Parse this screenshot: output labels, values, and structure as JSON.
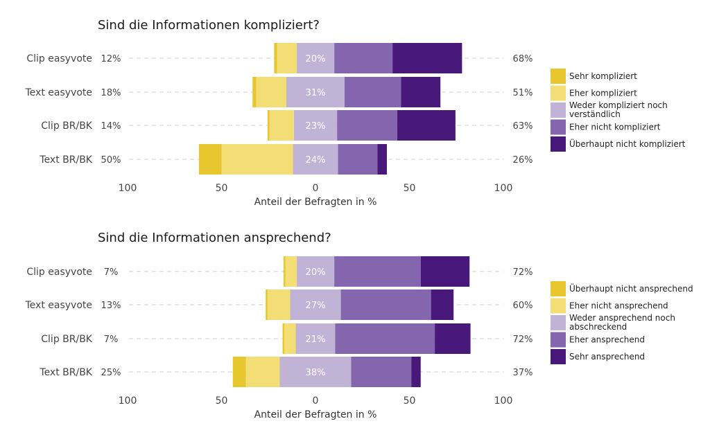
{
  "chart_data": [
    {
      "type": "bar",
      "orientation": "horizontal",
      "stacking": "diverging",
      "title": "Sind die Informationen kompliziert?",
      "xlabel": "Anteil der Befragten in %",
      "x_ticks": [
        "100",
        "50",
        "0",
        "50",
        "100"
      ],
      "xlim": [
        -100,
        100
      ],
      "categories": [
        "Clip easyvote",
        "Text easyvote",
        "Clip BR/BK",
        "Text BR/BK"
      ],
      "left_totals": [
        "12%",
        "18%",
        "14%",
        "50%"
      ],
      "right_totals": [
        "68%",
        "51%",
        "63%",
        "26%"
      ],
      "neutral_labels": [
        "20%",
        "31%",
        "23%",
        "24%"
      ],
      "legend_position": "right",
      "series": [
        {
          "name": "Sehr kompliziert",
          "color": "#E8C72E",
          "values": [
            1.5,
            2,
            1,
            12
          ]
        },
        {
          "name": "Eher kompliziert",
          "color": "#F3DE76",
          "values": [
            10.5,
            16,
            13,
            38
          ]
        },
        {
          "name": "Weder kompliziert noch verständlich",
          "color": "#C0B3D6",
          "values": [
            20,
            31,
            23,
            24
          ]
        },
        {
          "name": "Eher nicht kompliziert",
          "color": "#8366AD",
          "values": [
            31,
            30,
            32,
            21
          ]
        },
        {
          "name": "Überhaupt nicht kompliziert",
          "color": "#48197A",
          "values": [
            37,
            21,
            31,
            5
          ]
        }
      ]
    },
    {
      "type": "bar",
      "orientation": "horizontal",
      "stacking": "diverging",
      "title": "Sind die Informationen ansprechend?",
      "xlabel": "Anteil der Befragten in %",
      "x_ticks": [
        "100",
        "50",
        "0",
        "50",
        "100"
      ],
      "xlim": [
        -100,
        100
      ],
      "categories": [
        "Clip easyvote",
        "Text easyvote",
        "Clip BR/BK",
        "Text BR/BK"
      ],
      "left_totals": [
        "7%",
        "13%",
        "7%",
        "25%"
      ],
      "right_totals": [
        "72%",
        "60%",
        "72%",
        "37%"
      ],
      "neutral_labels": [
        "20%",
        "27%",
        "21%",
        "38%"
      ],
      "legend_position": "right",
      "series": [
        {
          "name": "Überhaupt nicht ansprechend",
          "color": "#E8C72E",
          "values": [
            1,
            1,
            1,
            7
          ]
        },
        {
          "name": "Eher nicht ansprechend",
          "color": "#F3DE76",
          "values": [
            6,
            12,
            6,
            18
          ]
        },
        {
          "name": "Weder ansprechend noch abschreckend",
          "color": "#C0B3D6",
          "values": [
            20,
            27,
            21,
            38
          ]
        },
        {
          "name": "Eher ansprechend",
          "color": "#8366AD",
          "values": [
            46,
            48,
            53,
            32
          ]
        },
        {
          "name": "Sehr ansprechend",
          "color": "#48197A",
          "values": [
            26,
            12,
            19,
            5
          ]
        }
      ]
    }
  ]
}
